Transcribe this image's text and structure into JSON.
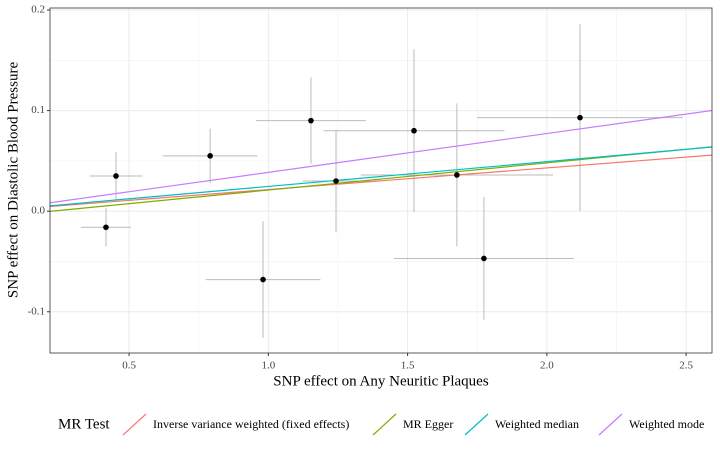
{
  "chart_data": {
    "type": "scatter",
    "x_label": "SNP effect on Any Neuritic Plaques",
    "y_label": "SNP effect on Diastolic Blood Pressure",
    "x": [
      0.417,
      0.453,
      0.791,
      0.981,
      1.153,
      1.243,
      1.523,
      1.677,
      1.774,
      2.119
    ],
    "values": [
      -0.016,
      0.035,
      0.055,
      -0.068,
      0.09,
      0.03,
      0.08,
      0.036,
      -0.047,
      0.093
    ],
    "xerr": [
      0.09,
      0.095,
      0.17,
      0.206,
      0.197,
      0.12,
      0.325,
      0.345,
      0.323,
      0.37
    ],
    "yerr": [
      0.019,
      0.024,
      0.027,
      0.058,
      0.043,
      0.051,
      0.081,
      0.071,
      0.061,
      0.093
    ],
    "color": "#000000",
    "errorbar_color": "#bbbbbb",
    "legend_title": "MR Test",
    "lines": [
      {
        "name": "Inverse variance weighted (fixed effects)",
        "color": "#F8766D",
        "intercept": 0,
        "slope": 0.0215
      },
      {
        "name": "MR Egger",
        "color": "#7CAE00",
        "intercept": -0.006,
        "slope": 0.027
      },
      {
        "name": "Weighted median",
        "color": "#00BFC4",
        "intercept": 0,
        "slope": 0.0246
      },
      {
        "name": "Weighted mode",
        "color": "#C77CFF",
        "intercept": 0,
        "slope": 0.0386
      }
    ],
    "xlim": [
      0.216,
      2.593
    ],
    "ylim": [
      -0.141,
      0.202
    ],
    "xticks": [
      0.5,
      {
        "value": 1,
        "label": "1.0"
      },
      1.5,
      {
        "value": 2,
        "label": "2.0"
      },
      2.5
    ],
    "yticks": [
      -0.1,
      {
        "value": 0,
        "label": "0.0"
      },
      0.1,
      0.2
    ],
    "grid": true,
    "legend_position": "bottom"
  }
}
